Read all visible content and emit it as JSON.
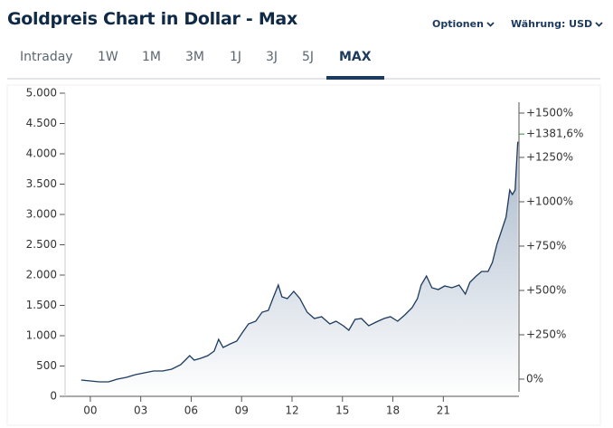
{
  "header": {
    "title": "Goldpreis Chart in Dollar - Max",
    "options": "Optionen",
    "currency": "Währung: USD"
  },
  "tabs": [
    "Intraday",
    "1W",
    "1M",
    "3M",
    "1J",
    "3J",
    "5J",
    "MAX"
  ],
  "active_tab": 7,
  "chart_data": {
    "type": "line",
    "x": [
      1999.46,
      2000,
      2000.54,
      2001.08,
      2001.61,
      2002.15,
      2002.69,
      2003.23,
      2003.76,
      2004.3,
      2004.84,
      2005.38,
      2005.65,
      2005.91,
      2006.18,
      2006.56,
      2006.99,
      2007.37,
      2007.63,
      2007.9,
      2008.33,
      2008.71,
      2009.03,
      2009.41,
      2009.84,
      2010.22,
      2010.59,
      2010.86,
      2011.18,
      2011.4,
      2011.72,
      2012.1,
      2012.47,
      2012.9,
      2013.33,
      2013.76,
      2014.25,
      2014.62,
      2015.05,
      2015.38,
      2015.75,
      2016.13,
      2016.56,
      2016.99,
      2017.47,
      2017.85,
      2018.28,
      2018.71,
      2019.14,
      2019.46,
      2019.68,
      2020,
      2020.32,
      2020.7,
      2021.08,
      2021.51,
      2021.94,
      2022.31,
      2022.58,
      2022.96,
      2023.28,
      2023.66,
      2023.92,
      2024.19,
      2024.46,
      2024.73,
      2024.95,
      2025.11,
      2025.27,
      2025.43
    ],
    "series": [
      {
        "color": "#1c3a5e",
        "values": [
          269,
          254,
          239,
          239,
          284,
          313,
          358,
          388,
          418,
          418,
          448,
          522,
          597,
          672,
          597,
          627,
          672,
          746,
          940,
          806,
          866,
          910,
          1045,
          1194,
          1239,
          1388,
          1418,
          1612,
          1836,
          1642,
          1612,
          1731,
          1612,
          1388,
          1284,
          1313,
          1194,
          1239,
          1164,
          1090,
          1269,
          1284,
          1164,
          1224,
          1284,
          1313,
          1239,
          1343,
          1463,
          1612,
          1836,
          1985,
          1791,
          1761,
          1821,
          1791,
          1836,
          1687,
          1881,
          1985,
          2060,
          2060,
          2209,
          2507,
          2731,
          2955,
          3403,
          3328,
          3403,
          4200
        ]
      }
    ],
    "xlim": [
      1998.5,
      2025.5
    ],
    "xticks": [
      {
        "value": 2000,
        "label": "00"
      },
      {
        "value": 2003,
        "label": "03"
      },
      {
        "value": 2006,
        "label": "06"
      },
      {
        "value": 2009,
        "label": "09"
      },
      {
        "value": 2012,
        "label": "12"
      },
      {
        "value": 2015,
        "label": "15"
      },
      {
        "value": 2018,
        "label": "18"
      },
      {
        "value": 2021,
        "label": "21"
      }
    ],
    "ylim": [
      0,
      5000
    ],
    "yticks": [
      0,
      500,
      {
        "value": 1000,
        "label": "1.000"
      },
      {
        "value": 1500,
        "label": "1.500"
      },
      {
        "value": 2000,
        "label": "2.000"
      },
      {
        "value": 2500,
        "label": "2.500"
      },
      {
        "value": 3000,
        "label": "3.000"
      },
      {
        "value": 3500,
        "label": "3.500"
      },
      {
        "value": 4000,
        "label": "4.000"
      },
      {
        "value": 4500,
        "label": "4.500"
      },
      {
        "value": 5000,
        "label": "5.000"
      }
    ],
    "y2lim": [
      -97,
      1612
    ],
    "y2ticks": [
      {
        "value": 0,
        "label": "0%"
      },
      {
        "value": 250,
        "label": "+250%"
      },
      {
        "value": 500,
        "label": "+500%"
      },
      {
        "value": 750,
        "label": "+750%"
      },
      {
        "value": 1000,
        "label": "+1000%"
      },
      {
        "value": 1250,
        "label": "+1250%"
      },
      {
        "value": 1500,
        "label": "+1500%"
      }
    ],
    "current_change": {
      "value": 1381.6,
      "label": "+1381,6%",
      "color": "#2e8b3a"
    }
  }
}
